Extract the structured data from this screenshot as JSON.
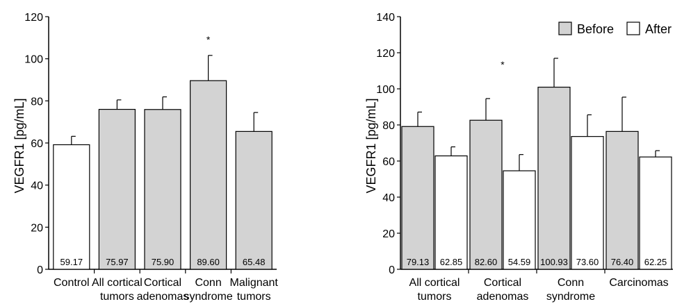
{
  "chart_data": [
    {
      "type": "bar",
      "title": "",
      "ylabel": "VEGFR1 [pg/mL]",
      "ylim": [
        0,
        120
      ],
      "yticks": [
        0,
        20,
        40,
        60,
        80,
        100,
        120
      ],
      "grid": false,
      "categories": [
        [
          "Control"
        ],
        [
          "All cortical",
          "tumors"
        ],
        [
          "Cortical",
          "adenomas"
        ],
        [
          "Conn",
          "syndrome"
        ],
        [
          "Malignant",
          "tumors"
        ]
      ],
      "values": [
        59.17,
        75.97,
        75.9,
        89.6,
        65.48
      ],
      "value_labels": [
        "59.17",
        "75.97",
        "75.90",
        "89.60",
        "65.48"
      ],
      "errors": [
        4,
        4.5,
        6,
        12,
        9
      ],
      "colors": [
        "#ffffff",
        "#d3d3d3",
        "#d3d3d3",
        "#d3d3d3",
        "#d3d3d3"
      ],
      "significance": [
        "",
        "",
        "",
        "*",
        ""
      ]
    },
    {
      "type": "bar",
      "title": "",
      "ylabel": "VEGFR1 [pg/mL]",
      "ylim": [
        0,
        140
      ],
      "yticks": [
        0,
        20,
        40,
        60,
        80,
        100,
        120,
        140
      ],
      "grid": false,
      "legend_position": "top-right",
      "categories": [
        [
          "All cortical",
          "tumors"
        ],
        [
          "Cortical",
          "adenomas"
        ],
        [
          "Conn",
          "syndrome"
        ],
        [
          "Carcinomas"
        ]
      ],
      "series": [
        {
          "name": "Before",
          "color": "#d3d3d3",
          "values": [
            79.13,
            82.6,
            100.93,
            76.4
          ],
          "value_labels": [
            "79.13",
            "82.60",
            "100.93",
            "76.40"
          ],
          "errors": [
            8,
            12,
            16,
            19
          ]
        },
        {
          "name": "After",
          "color": "#ffffff",
          "values": [
            62.85,
            54.59,
            73.6,
            62.25
          ],
          "value_labels": [
            "62.85",
            "54.59",
            "73.60",
            "62.25"
          ],
          "errors": [
            5,
            9,
            12,
            3.5
          ]
        }
      ],
      "significance": [
        "",
        "*",
        "",
        ""
      ]
    }
  ]
}
